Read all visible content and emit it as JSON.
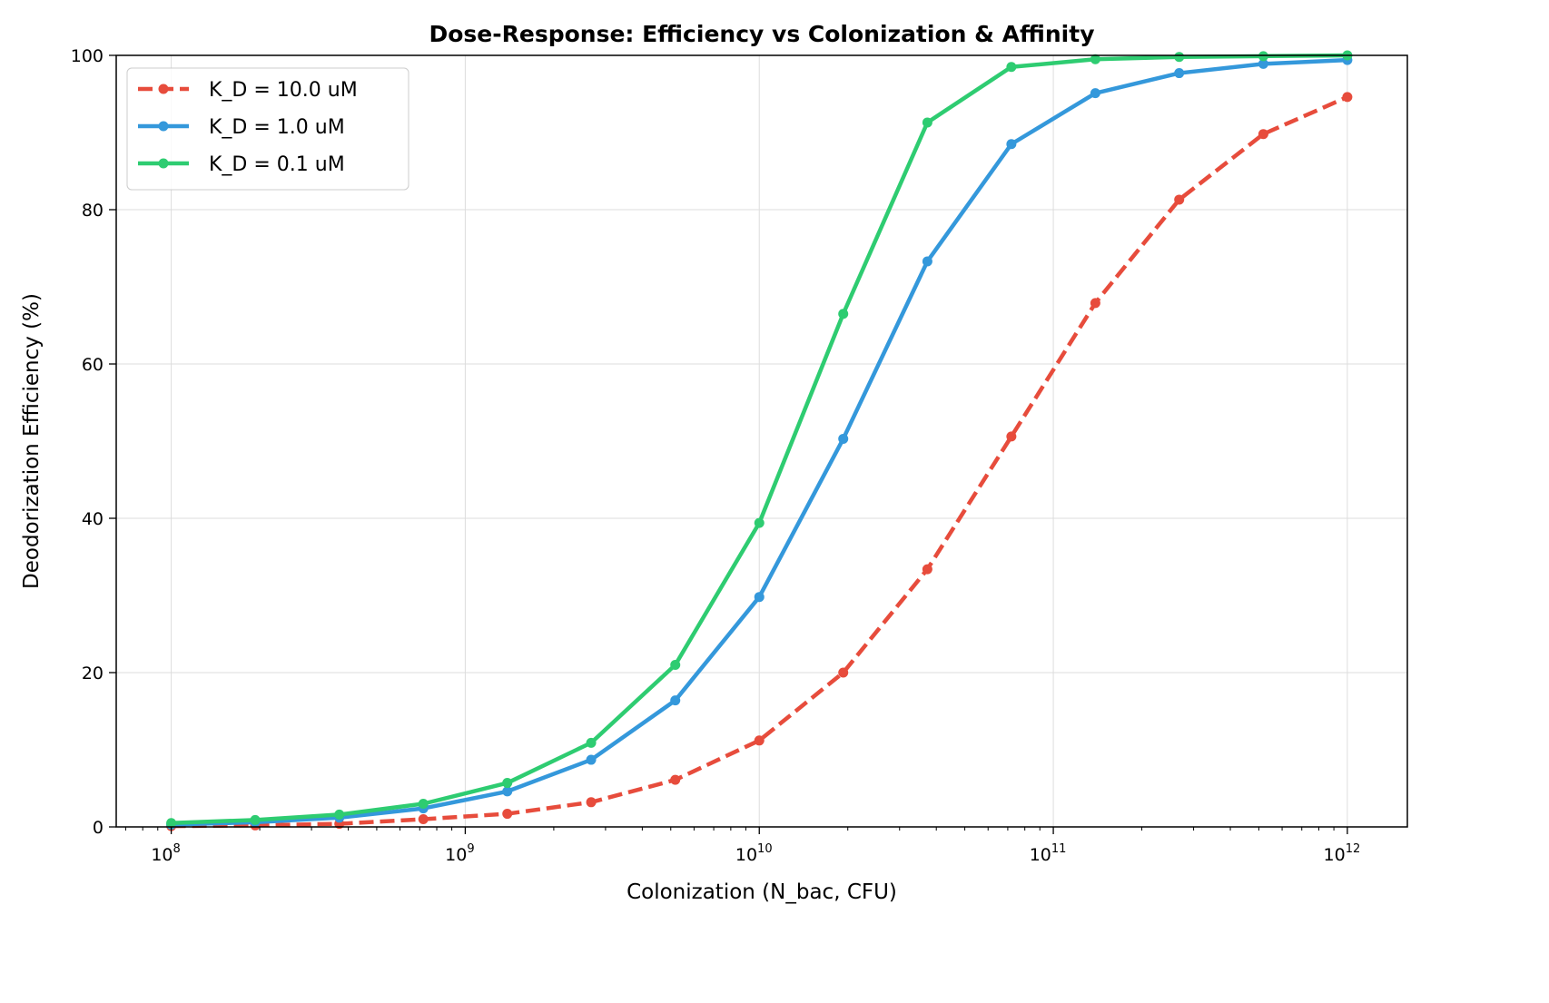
{
  "chart_data": {
    "type": "line",
    "title": "Dose-Response: Efficiency vs Colonization & Affinity",
    "xlabel": "Colonization (N_bac, CFU)",
    "ylabel": "Deodorization Efficiency (%)",
    "xscale": "log",
    "xlim": [
      65000000.0,
      1600000000000.0
    ],
    "ylim": [
      0,
      100
    ],
    "xticks": [
      {
        "value": 100000000.0,
        "base": "10",
        "exp": "8"
      },
      {
        "value": 1000000000.0,
        "base": "10",
        "exp": "9"
      },
      {
        "value": 10000000000.0,
        "base": "10",
        "exp": "10"
      },
      {
        "value": 100000000000.0,
        "base": "10",
        "exp": "11"
      },
      {
        "value": 1000000000000.0,
        "base": "10",
        "exp": "12"
      }
    ],
    "yticks": [
      0,
      20,
      40,
      60,
      80,
      100
    ],
    "grid": true,
    "legend_position": "top-left",
    "x": [
      100000000.0,
      193000000.0,
      373000000.0,
      720000000.0,
      1390000000.0,
      2680000000.0,
      5180000000.0,
      10000000000.0,
      19300000000.0,
      37300000000.0,
      72000000000.0,
      139000000000.0,
      268000000000.0,
      518000000000.0,
      1000000000000.0
    ],
    "series": [
      {
        "name": "K_D = 10.0 uM",
        "color": "#e74c3c",
        "style": "dashed",
        "values": [
          0.1,
          0.2,
          0.4,
          1.0,
          1.7,
          3.2,
          6.1,
          11.2,
          20.0,
          33.4,
          50.6,
          67.9,
          81.3,
          89.8,
          94.6
        ]
      },
      {
        "name": "K_D = 1.0 uM",
        "color": "#3498db",
        "style": "solid",
        "values": [
          0.3,
          0.6,
          1.2,
          2.4,
          4.6,
          8.7,
          16.4,
          29.8,
          50.3,
          73.3,
          88.5,
          95.1,
          97.7,
          98.9,
          99.4
        ]
      },
      {
        "name": "K_D = 0.1 uM",
        "color": "#2ecc71",
        "style": "solid",
        "values": [
          0.5,
          0.9,
          1.6,
          3.0,
          5.7,
          10.9,
          21.0,
          39.4,
          66.5,
          91.3,
          98.5,
          99.5,
          99.8,
          99.9,
          100.0
        ]
      }
    ]
  }
}
